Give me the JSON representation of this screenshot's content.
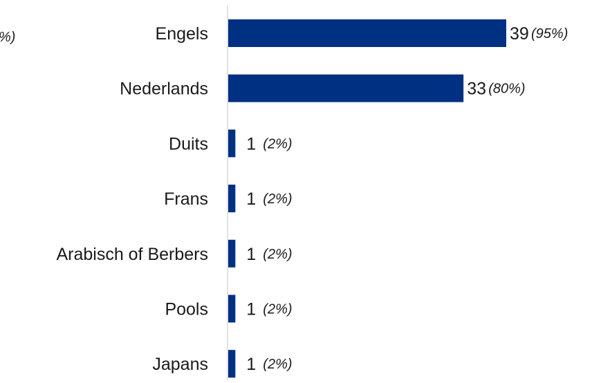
{
  "chart_data": {
    "type": "bar",
    "orientation": "horizontal",
    "categories": [
      "Engels",
      "Nederlands",
      "Duits",
      "Frans",
      "Arabisch of Berbers",
      "Pools",
      "Japans"
    ],
    "values": [
      39,
      33,
      1,
      1,
      1,
      1,
      1
    ],
    "percent_labels": [
      "(95%)",
      "(80%)",
      "(2%)",
      "(2%)",
      "(2%)",
      "(2%)",
      "(2%)"
    ],
    "clipped_label": "%)",
    "title": "",
    "xlabel": "",
    "ylabel": "",
    "xlim": [
      0,
      41
    ],
    "grid": false,
    "legend": "none",
    "colors": {
      "bar": "#003082",
      "axis": "#d9d9d9",
      "text": "#1a1a1a"
    }
  }
}
